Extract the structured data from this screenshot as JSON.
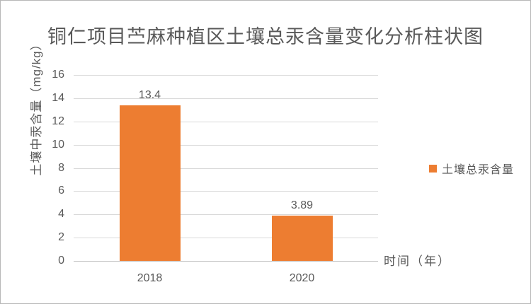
{
  "chart_data": {
    "type": "bar",
    "title": "铜仁项目苎麻种植区土壤总汞含量变化分析柱状图",
    "xlabel": "时间（年）",
    "ylabel": "土壤中汞含量（mg/kg）",
    "categories": [
      "2018",
      "2020"
    ],
    "series": [
      {
        "name": "土壤总汞含量",
        "values": [
          13.4,
          3.89
        ],
        "value_labels": [
          "13.4",
          "3.89"
        ]
      }
    ],
    "ylim": [
      0,
      16
    ],
    "yticks": [
      0,
      2,
      4,
      6,
      8,
      10,
      12,
      14,
      16
    ],
    "grid": true,
    "legend_position": "right"
  },
  "colors": {
    "bar": "#ED7D31",
    "text": "#595959",
    "gridline": "#D9D9D9",
    "axis_line": "#BFBFBF",
    "background": "#FFFFFF",
    "border": "#B7B7B7"
  }
}
